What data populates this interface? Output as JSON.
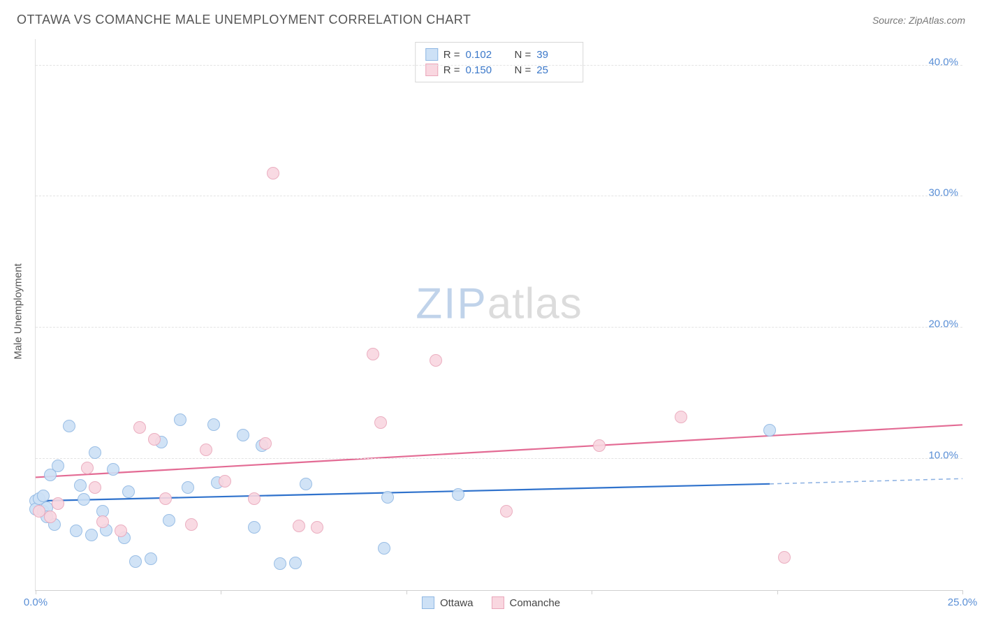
{
  "title": "OTTAWA VS COMANCHE MALE UNEMPLOYMENT CORRELATION CHART",
  "source_label": "Source: ",
  "source_name": "ZipAtlas.com",
  "y_axis_title": "Male Unemployment",
  "watermark_a": "ZIP",
  "watermark_b": "atlas",
  "chart": {
    "type": "scatter",
    "xlim": [
      0,
      25
    ],
    "ylim": [
      0,
      42
    ],
    "x_ticks": [
      0,
      5,
      10,
      15,
      20,
      25
    ],
    "x_tick_labels": {
      "0": "0.0%",
      "25": "25.0%"
    },
    "y_ticks": [
      10,
      20,
      30,
      40
    ],
    "y_tick_labels": {
      "10": "10.0%",
      "20": "20.0%",
      "30": "30.0%",
      "40": "40.0%"
    },
    "grid_color": "#e3e3e3",
    "axis_color": "#cfcfcf",
    "tick_label_color": "#5a8fd6",
    "tick_label_fontsize": 15,
    "background_color": "#ffffff",
    "marker_radius": 9,
    "marker_stroke_width": 1.5,
    "series": [
      {
        "name": "Ottawa",
        "fill": "#cde1f6",
        "stroke": "#8fb7e3",
        "R": "0.102",
        "N": "39",
        "trend": {
          "x1": 0,
          "y1": 6.8,
          "x2": 19.8,
          "y2": 8.1,
          "color": "#2f72cc",
          "width": 2.2,
          "dash_x1": 19.8,
          "dash_y1": 8.1,
          "dash_x2": 25,
          "dash_y2": 8.5
        },
        "points": [
          [
            0.0,
            6.8
          ],
          [
            0.0,
            6.2
          ],
          [
            0.1,
            7.0
          ],
          [
            0.2,
            6.0
          ],
          [
            0.2,
            7.2
          ],
          [
            0.3,
            6.3
          ],
          [
            0.3,
            5.6
          ],
          [
            0.4,
            8.8
          ],
          [
            0.5,
            5.0
          ],
          [
            0.6,
            9.5
          ],
          [
            0.9,
            12.5
          ],
          [
            1.1,
            4.5
          ],
          [
            1.2,
            8.0
          ],
          [
            1.3,
            6.9
          ],
          [
            1.5,
            4.2
          ],
          [
            1.6,
            10.5
          ],
          [
            1.8,
            6.0
          ],
          [
            1.9,
            4.6
          ],
          [
            2.1,
            9.2
          ],
          [
            2.4,
            4.0
          ],
          [
            2.5,
            7.5
          ],
          [
            2.7,
            2.2
          ],
          [
            3.1,
            2.4
          ],
          [
            3.4,
            11.3
          ],
          [
            3.6,
            5.3
          ],
          [
            3.9,
            13.0
          ],
          [
            4.1,
            7.8
          ],
          [
            4.8,
            12.6
          ],
          [
            4.9,
            8.2
          ],
          [
            5.6,
            11.8
          ],
          [
            5.9,
            4.8
          ],
          [
            6.1,
            11.0
          ],
          [
            6.6,
            2.0
          ],
          [
            7.0,
            2.1
          ],
          [
            7.3,
            8.1
          ],
          [
            9.4,
            3.2
          ],
          [
            9.5,
            7.1
          ],
          [
            11.4,
            7.3
          ],
          [
            19.8,
            12.2
          ]
        ]
      },
      {
        "name": "Comanche",
        "fill": "#f9d7e0",
        "stroke": "#e9a6ba",
        "R": "0.150",
        "N": "25",
        "trend": {
          "x1": 0,
          "y1": 8.6,
          "x2": 25,
          "y2": 12.6,
          "color": "#e36b94",
          "width": 2.2
        },
        "points": [
          [
            0.1,
            6.0
          ],
          [
            0.4,
            5.6
          ],
          [
            0.6,
            6.6
          ],
          [
            1.4,
            9.3
          ],
          [
            1.6,
            7.8
          ],
          [
            1.8,
            5.2
          ],
          [
            2.3,
            4.5
          ],
          [
            2.8,
            12.4
          ],
          [
            3.2,
            11.5
          ],
          [
            3.5,
            7.0
          ],
          [
            4.2,
            5.0
          ],
          [
            4.6,
            10.7
          ],
          [
            5.1,
            8.3
          ],
          [
            5.9,
            7.0
          ],
          [
            6.2,
            11.2
          ],
          [
            6.4,
            31.8
          ],
          [
            7.1,
            4.9
          ],
          [
            7.6,
            4.8
          ],
          [
            9.1,
            18.0
          ],
          [
            9.3,
            12.8
          ],
          [
            10.8,
            17.5
          ],
          [
            12.7,
            6.0
          ],
          [
            15.2,
            11.0
          ],
          [
            17.4,
            13.2
          ],
          [
            20.2,
            2.5
          ]
        ]
      }
    ]
  },
  "legend_top": {
    "R_label": "R =",
    "N_label": "N ="
  },
  "legend_bottom": [
    {
      "label": "Ottawa",
      "fill": "#cde1f6",
      "stroke": "#8fb7e3"
    },
    {
      "label": "Comanche",
      "fill": "#f9d7e0",
      "stroke": "#e9a6ba"
    }
  ]
}
